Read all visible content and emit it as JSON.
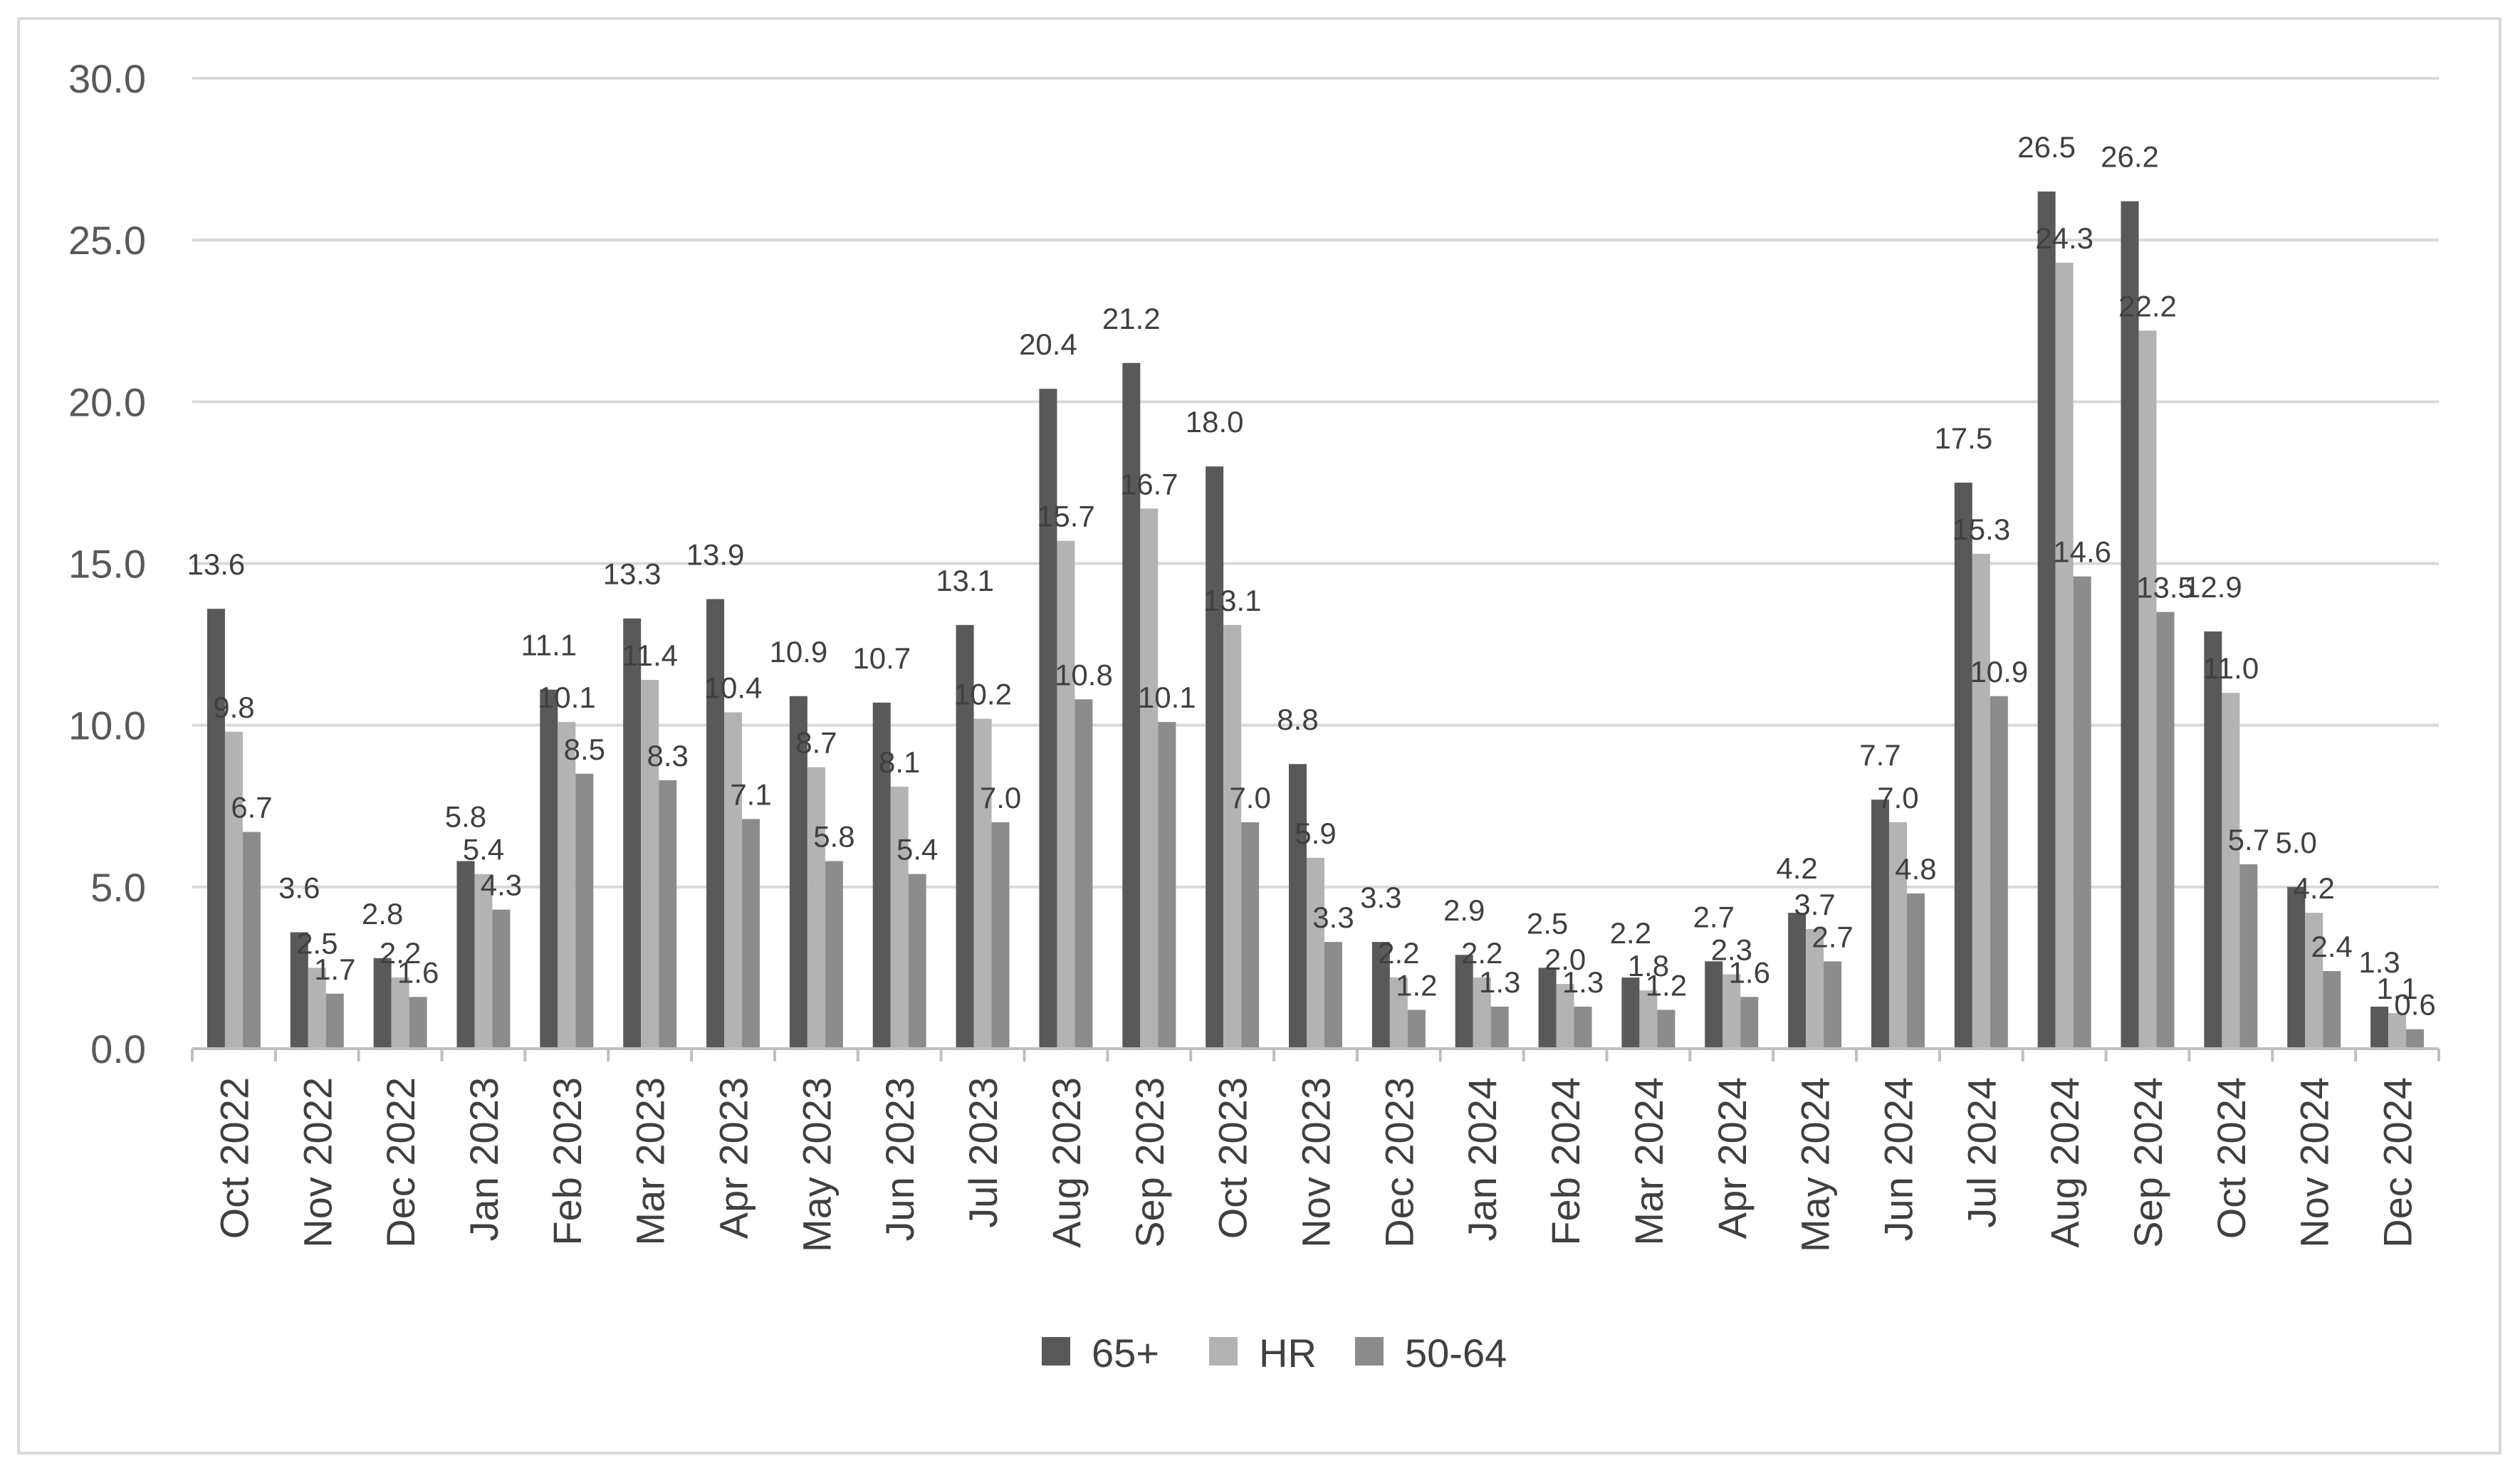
{
  "chart_data": {
    "type": "bar",
    "categories": [
      "Oct 2022",
      "Nov 2022",
      "Dec 2022",
      "Jan 2023",
      "Feb 2023",
      "Mar 2023",
      "Apr 2023",
      "May 2023",
      "Jun 2023",
      "Jul 2023",
      "Aug 2023",
      "Sep 2023",
      "Oct 2023",
      "Nov 2023",
      "Dec 2023",
      "Jan 2024",
      "Feb 2024",
      "Mar 2024",
      "Apr 2024",
      "May 2024",
      "Jun 2024",
      "Jul 2024",
      "Aug 2024",
      "Sep 2024",
      "Oct 2024",
      "Nov 2024",
      "Dec 2024"
    ],
    "series": [
      {
        "name": "65+",
        "color": "#595959",
        "values": [
          13.6,
          3.6,
          2.8,
          5.8,
          11.1,
          13.3,
          13.9,
          10.9,
          10.7,
          13.1,
          20.4,
          21.2,
          18.0,
          8.8,
          3.3,
          2.9,
          2.5,
          2.2,
          2.7,
          4.2,
          7.7,
          17.5,
          26.5,
          26.2,
          12.9,
          5.0,
          1.3
        ]
      },
      {
        "name": "HR",
        "color": "#b3b3b3",
        "values": [
          9.8,
          2.5,
          2.2,
          5.4,
          10.1,
          11.4,
          10.4,
          8.7,
          8.1,
          10.2,
          15.7,
          16.7,
          13.1,
          5.9,
          2.2,
          2.2,
          2.0,
          1.8,
          2.3,
          3.7,
          7.0,
          15.3,
          24.3,
          22.2,
          11.0,
          4.2,
          1.1
        ]
      },
      {
        "name": "50-64",
        "color": "#8c8c8c",
        "values": [
          6.7,
          1.7,
          1.6,
          4.3,
          8.5,
          8.3,
          7.1,
          5.8,
          5.4,
          7.0,
          10.8,
          10.1,
          7.0,
          3.3,
          1.2,
          1.3,
          1.3,
          1.2,
          1.6,
          2.7,
          4.8,
          10.9,
          14.6,
          13.5,
          5.7,
          2.4,
          0.6
        ]
      }
    ],
    "ylim": [
      0,
      30
    ],
    "yticks": [
      "0.0",
      "5.0",
      "10.0",
      "15.0",
      "20.0",
      "25.0",
      "30.0"
    ],
    "title": "",
    "xlabel": "",
    "ylabel": "",
    "grid": true,
    "legend": "bottom-center",
    "data_labels": true
  }
}
